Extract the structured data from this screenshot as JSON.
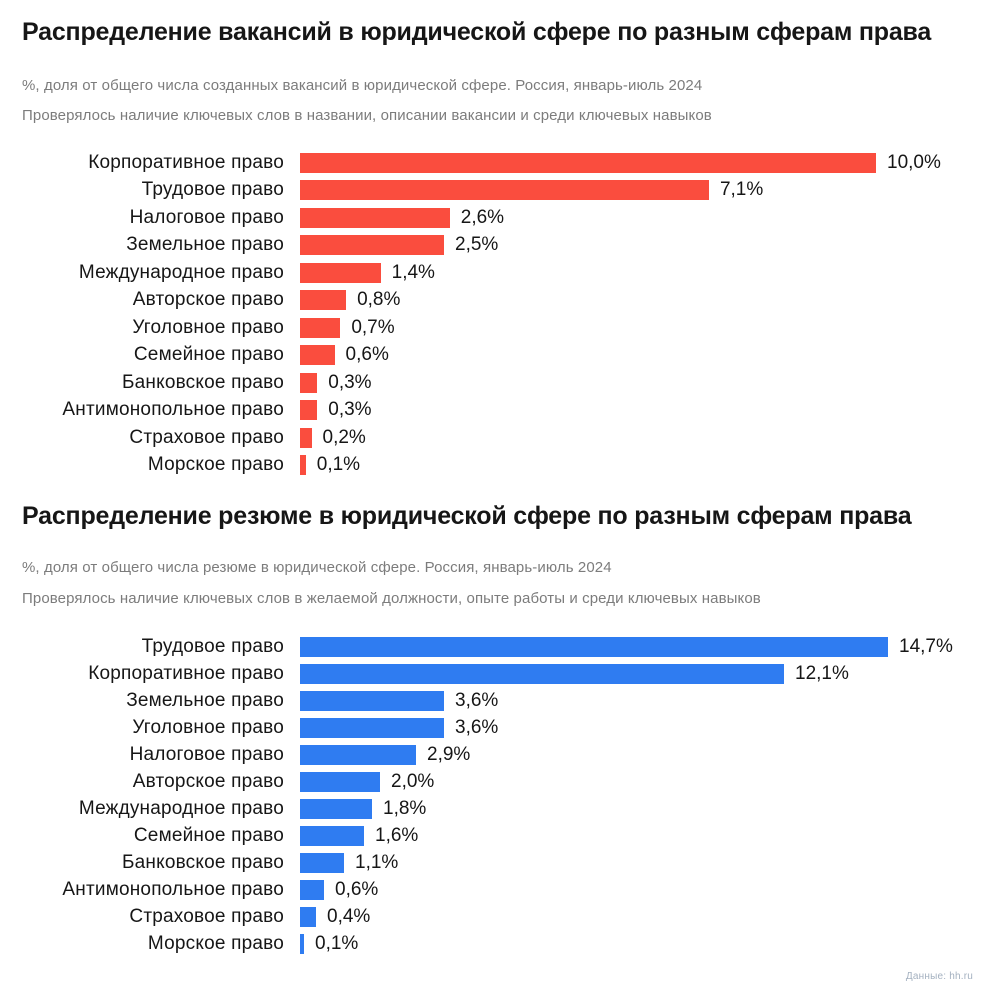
{
  "chart_data": [
    {
      "type": "bar",
      "orientation": "horizontal",
      "title": "Распределение вакансий в юридической сфере по разным сферам права",
      "subtitle": "%, доля от общего числа созданных вакансий в юридической сфере. Россия, январь-июль 2024",
      "note": "Проверялось наличие ключевых слов в названии, описании вакансии и среди ключевых навыков",
      "categories": [
        "Корпоративное право",
        "Трудовое право",
        "Налоговое право",
        "Земельное право",
        "Международное право",
        "Авторское право",
        "Уголовное право",
        "Семейное право",
        "Банковское право",
        "Антимонопольное право",
        "Страховое право",
        "Морское право"
      ],
      "values": [
        10.0,
        7.1,
        2.6,
        2.5,
        1.4,
        0.8,
        0.7,
        0.6,
        0.3,
        0.3,
        0.2,
        0.1
      ],
      "value_labels": [
        "10,0%",
        "7,1%",
        "2,6%",
        "2,5%",
        "1,4%",
        "0,8%",
        "0,7%",
        "0,6%",
        "0,3%",
        "0,3%",
        "0,2%",
        "0,1%"
      ],
      "bar_color": "#fa4d3e",
      "xlim": [
        0,
        10
      ],
      "grid": false,
      "legend": false,
      "value_label_position": "bar-end"
    },
    {
      "type": "bar",
      "orientation": "horizontal",
      "title": "Распределение резюме в юридической сфере по разным сферам права",
      "subtitle": "%, доля от общего числа резюме в юридической сфере. Россия, январь-июль 2024",
      "note": "Проверялось наличие ключевых слов в желаемой должности, опыте работы и среди ключевых навыков",
      "categories": [
        "Трудовое право",
        "Корпоративное право",
        "Земельное право",
        "Уголовное право",
        "Налоговое право",
        "Авторское право",
        "Международное право",
        "Семейное право",
        "Банковское право",
        "Антимонопольное право",
        "Страховое право",
        "Морское право"
      ],
      "values": [
        14.7,
        12.1,
        3.6,
        3.6,
        2.9,
        2.0,
        1.8,
        1.6,
        1.1,
        0.6,
        0.4,
        0.1
      ],
      "value_labels": [
        "14,7%",
        "12,1%",
        "3,6%",
        "3,6%",
        "2,9%",
        "2,0%",
        "1,8%",
        "1,6%",
        "1,1%",
        "0,6%",
        "0,4%",
        "0,1%"
      ],
      "bar_color": "#2f7cf1",
      "xlim": [
        0,
        14.7
      ],
      "grid": false,
      "legend": false,
      "value_label_position": "bar-end"
    }
  ],
  "footer": {
    "source_label": "Данные: hh.ru"
  },
  "colors": {
    "vacancies_bar": "#fa4d3e",
    "resumes_bar": "#2f7cf1",
    "title_text": "#161616",
    "subtitle_text": "#7c7c7c",
    "source_text": "#a4b1c0",
    "background": "#ffffff"
  }
}
